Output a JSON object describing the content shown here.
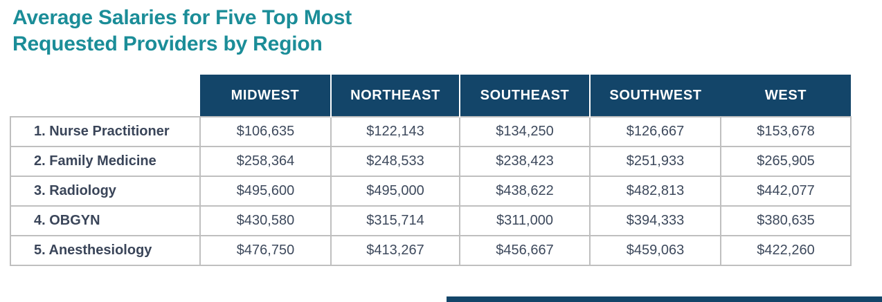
{
  "title": {
    "line1": "Average Salaries for Five Top Most",
    "line2": "Requested Providers by Region"
  },
  "table": {
    "columns": [
      "MIDWEST",
      "NORTHEAST",
      "SOUTHEAST",
      "SOUTHWEST",
      "WEST"
    ],
    "rows": [
      {
        "label": "1. Nurse Practitioner",
        "values": [
          "$106,635",
          "$122,143",
          "$134,250",
          "$126,667",
          "$153,678"
        ]
      },
      {
        "label": "2. Family Medicine",
        "values": [
          "$258,364",
          "$248,533",
          "$238,423",
          "$251,933",
          "$265,905"
        ]
      },
      {
        "label": "3. Radiology",
        "values": [
          "$495,600",
          "$495,000",
          "$438,622",
          "$482,813",
          "$442,077"
        ]
      },
      {
        "label": "4. OBGYN",
        "values": [
          "$430,580",
          "$315,714",
          "$311,000",
          "$394,333",
          "$380,635"
        ]
      },
      {
        "label": "5. Anesthesiology",
        "values": [
          "$476,750",
          "$413,267",
          "$456,667",
          "$459,063",
          "$422,260"
        ]
      }
    ]
  },
  "colors": {
    "title_teal": "#1B8D98",
    "header_navy": "#134569",
    "row_label_text": "#3A4559",
    "value_text": "#3D495C",
    "border_gray": "#BFBFBF",
    "header_text": "#FFFFFF"
  },
  "chart_data": {
    "type": "table",
    "title": "Average Salaries for Five Top Most Requested Providers by Region",
    "columns": [
      "MIDWEST",
      "NORTHEAST",
      "SOUTHEAST",
      "SOUTHWEST",
      "WEST"
    ],
    "series": [
      {
        "name": "1. Nurse Practitioner",
        "values": [
          106635,
          122143,
          134250,
          126667,
          153678
        ]
      },
      {
        "name": "2. Family Medicine",
        "values": [
          258364,
          248533,
          238423,
          251933,
          265905
        ]
      },
      {
        "name": "3. Radiology",
        "values": [
          495600,
          495000,
          438622,
          482813,
          442077
        ]
      },
      {
        "name": "4. OBGYN",
        "values": [
          430580,
          315714,
          311000,
          394333,
          380635
        ]
      },
      {
        "name": "5. Anesthesiology",
        "values": [
          476750,
          413267,
          456667,
          459063,
          422260
        ]
      }
    ]
  }
}
